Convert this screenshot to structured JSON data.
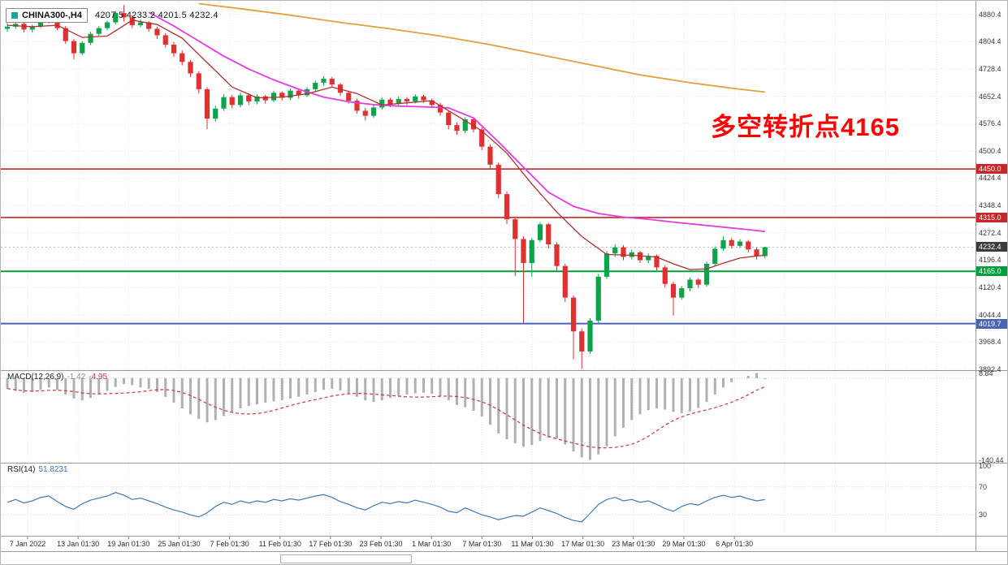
{
  "window": {
    "symbol": "CHINA300-,H4",
    "ohlc": "4207.5 4233.2 4201.5 4232.4"
  },
  "annotation": {
    "text": "多空转折点4165",
    "color": "#fe0000"
  },
  "chart_data": {
    "main": {
      "type": "candlestick",
      "title": "CHINA300-,H4",
      "ohlc_display": {
        "open": 4207.5,
        "high": 4233.2,
        "low": 4201.5,
        "close": 4232.4
      },
      "ylim": [
        3890,
        4918
      ],
      "y_ticks": [
        4880.4,
        4804.4,
        4728.4,
        4652.4,
        4576.4,
        4500.4,
        4424.4,
        4348.4,
        4272.4,
        4196.4,
        4120.4,
        4044.4,
        3968.4,
        3892.4
      ],
      "x_labels": [
        "7 Jan 2022",
        "13 Jan 01:30",
        "19 Jan 01:30",
        "25 Jan 01:30",
        "7 Feb 01:30",
        "11 Feb 01:30",
        "17 Feb 01:30",
        "23 Feb 01:30",
        "1 Mar 01:30",
        "7 Mar 01:30",
        "11 Mar 01:30",
        "17 Mar 01:30",
        "23 Mar 01:30",
        "29 Mar 01:30",
        "6 Apr 01:30"
      ],
      "up_color": "#0ca44a",
      "down_color": "#e03131",
      "candles": [
        [
          4840,
          4856,
          4832,
          4846
        ],
        [
          4846,
          4860,
          4840,
          4854
        ],
        [
          4854,
          4858,
          4830,
          4838
        ],
        [
          4838,
          4852,
          4830,
          4846
        ],
        [
          4846,
          4866,
          4842,
          4861
        ],
        [
          4861,
          4874,
          4855,
          4868
        ],
        [
          4868,
          4870,
          4836,
          4842
        ],
        [
          4842,
          4848,
          4798,
          4806
        ],
        [
          4806,
          4812,
          4755,
          4772
        ],
        [
          4772,
          4806,
          4766,
          4801
        ],
        [
          4801,
          4832,
          4795,
          4826
        ],
        [
          4826,
          4848,
          4820,
          4842
        ],
        [
          4842,
          4863,
          4836,
          4858
        ],
        [
          4858,
          4890,
          4852,
          4884
        ],
        [
          4884,
          4906,
          4860,
          4872
        ],
        [
          4872,
          4878,
          4842,
          4850
        ],
        [
          4850,
          4866,
          4844,
          4858
        ],
        [
          4858,
          4862,
          4832,
          4840
        ],
        [
          4840,
          4846,
          4812,
          4822
        ],
        [
          4822,
          4828,
          4788,
          4796
        ],
        [
          4796,
          4804,
          4762,
          4772
        ],
        [
          4772,
          4780,
          4738,
          4748
        ],
        [
          4748,
          4754,
          4706,
          4716
        ],
        [
          4716,
          4722,
          4660,
          4672
        ],
        [
          4672,
          4678,
          4561,
          4590
        ],
        [
          4590,
          4626,
          4582,
          4618
        ],
        [
          4618,
          4658,
          4612,
          4650
        ],
        [
          4650,
          4656,
          4618,
          4628
        ],
        [
          4628,
          4662,
          4622,
          4655
        ],
        [
          4655,
          4660,
          4628,
          4638
        ],
        [
          4638,
          4658,
          4630,
          4652
        ],
        [
          4652,
          4656,
          4632,
          4641
        ],
        [
          4641,
          4668,
          4636,
          4662
        ],
        [
          4662,
          4666,
          4640,
          4648
        ],
        [
          4648,
          4674,
          4642,
          4668
        ],
        [
          4668,
          4672,
          4646,
          4655
        ],
        [
          4655,
          4678,
          4650,
          4672
        ],
        [
          4672,
          4696,
          4666,
          4690
        ],
        [
          4690,
          4708,
          4682,
          4701
        ],
        [
          4701,
          4706,
          4678,
          4685
        ],
        [
          4685,
          4690,
          4654,
          4662
        ],
        [
          4662,
          4668,
          4632,
          4640
        ],
        [
          4640,
          4646,
          4604,
          4612
        ],
        [
          4612,
          4620,
          4585,
          4598
        ],
        [
          4598,
          4628,
          4592,
          4621
        ],
        [
          4621,
          4650,
          4615,
          4643
        ],
        [
          4643,
          4648,
          4622,
          4631
        ],
        [
          4631,
          4652,
          4625,
          4645
        ],
        [
          4645,
          4650,
          4628,
          4638
        ],
        [
          4638,
          4658,
          4632,
          4652
        ],
        [
          4652,
          4656,
          4634,
          4641
        ],
        [
          4641,
          4646,
          4620,
          4628
        ],
        [
          4628,
          4634,
          4598,
          4607
        ],
        [
          4607,
          4612,
          4560,
          4572
        ],
        [
          4572,
          4580,
          4545,
          4556
        ],
        [
          4556,
          4594,
          4550,
          4588
        ],
        [
          4588,
          4592,
          4552,
          4560
        ],
        [
          4560,
          4566,
          4502,
          4512
        ],
        [
          4512,
          4518,
          4450,
          4462
        ],
        [
          4462,
          4468,
          4368,
          4380
        ],
        [
          4380,
          4388,
          4296,
          4310
        ],
        [
          4310,
          4318,
          4152,
          4255
        ],
        [
          4255,
          4262,
          4022,
          4188
        ],
        [
          4188,
          4258,
          4150,
          4252
        ],
        [
          4252,
          4302,
          4246,
          4296
        ],
        [
          4296,
          4300,
          4228,
          4240
        ],
        [
          4240,
          4246,
          4168,
          4180
        ],
        [
          4180,
          4186,
          4080,
          4092
        ],
        [
          4092,
          4098,
          3920,
          3998
        ],
        [
          3998,
          4006,
          3894,
          3942
        ],
        [
          3942,
          4035,
          3936,
          4028
        ],
        [
          4028,
          4158,
          4022,
          4150
        ],
        [
          4150,
          4222,
          4144,
          4215
        ],
        [
          4215,
          4240,
          4205,
          4232
        ],
        [
          4232,
          4238,
          4196,
          4205
        ],
        [
          4205,
          4226,
          4198,
          4218
        ],
        [
          4218,
          4222,
          4188,
          4196
        ],
        [
          4196,
          4215,
          4188,
          4208
        ],
        [
          4208,
          4212,
          4168,
          4176
        ],
        [
          4176,
          4182,
          4120,
          4130
        ],
        [
          4130,
          4136,
          4042,
          4092
        ],
        [
          4092,
          4124,
          4086,
          4118
        ],
        [
          4118,
          4148,
          4110,
          4142
        ],
        [
          4142,
          4146,
          4118,
          4128
        ],
        [
          4128,
          4192,
          4122,
          4186
        ],
        [
          4186,
          4235,
          4180,
          4228
        ],
        [
          4228,
          4262,
          4222,
          4252
        ],
        [
          4252,
          4258,
          4228,
          4236
        ],
        [
          4236,
          4255,
          4230,
          4248
        ],
        [
          4248,
          4252,
          4218,
          4226
        ],
        [
          4226,
          4232,
          4198,
          4208
        ],
        [
          4207.5,
          4233.2,
          4201.5,
          4232.4
        ]
      ],
      "overlays": {
        "orange_color": "#e0a23c",
        "magenta_color": "#e23ce2",
        "red_color": "#b03030",
        "ma_orange": [
          [
            23,
            4910
          ],
          [
            28,
            4896
          ],
          [
            34,
            4878
          ],
          [
            40,
            4858
          ],
          [
            46,
            4840
          ],
          [
            52,
            4820
          ],
          [
            58,
            4796
          ],
          [
            64,
            4768
          ],
          [
            70,
            4740
          ],
          [
            76,
            4712
          ],
          [
            82,
            4690
          ],
          [
            88,
            4672
          ],
          [
            91,
            4664
          ]
        ],
        "ma_magenta": [
          [
            17,
            4886
          ],
          [
            20,
            4848
          ],
          [
            23,
            4806
          ],
          [
            26,
            4764
          ],
          [
            29,
            4728
          ],
          [
            32,
            4698
          ],
          [
            35,
            4672
          ],
          [
            38,
            4650
          ],
          [
            41,
            4637
          ],
          [
            44,
            4629
          ],
          [
            47,
            4625
          ],
          [
            50,
            4623
          ],
          [
            53,
            4620
          ],
          [
            56,
            4592
          ],
          [
            59,
            4525
          ],
          [
            62,
            4455
          ],
          [
            65,
            4385
          ],
          [
            68,
            4346
          ],
          [
            71,
            4326
          ],
          [
            74,
            4316
          ],
          [
            77,
            4310
          ],
          [
            80,
            4302
          ],
          [
            83,
            4295
          ],
          [
            86,
            4288
          ],
          [
            89,
            4281
          ],
          [
            91,
            4276
          ]
        ],
        "ma_red": [
          [
            0,
            4850
          ],
          [
            3,
            4846
          ],
          [
            6,
            4850
          ],
          [
            9,
            4816
          ],
          [
            12,
            4820
          ],
          [
            15,
            4864
          ],
          [
            18,
            4852
          ],
          [
            21,
            4814
          ],
          [
            24,
            4746
          ],
          [
            27,
            4678
          ],
          [
            30,
            4648
          ],
          [
            33,
            4650
          ],
          [
            36,
            4659
          ],
          [
            39,
            4678
          ],
          [
            42,
            4660
          ],
          [
            45,
            4628
          ],
          [
            48,
            4634
          ],
          [
            51,
            4640
          ],
          [
            54,
            4598
          ],
          [
            57,
            4556
          ],
          [
            60,
            4494
          ],
          [
            63,
            4408
          ],
          [
            66,
            4330
          ],
          [
            69,
            4262
          ],
          [
            72,
            4212
          ],
          [
            75,
            4210
          ],
          [
            78,
            4205
          ],
          [
            80,
            4186
          ],
          [
            82,
            4170
          ],
          [
            84,
            4172
          ],
          [
            86,
            4188
          ],
          [
            88,
            4202
          ],
          [
            90,
            4208
          ],
          [
            91,
            4210
          ]
        ]
      },
      "hlines": [
        {
          "value": 4450.0,
          "label": "4450.0",
          "color": "#c62828",
          "width": 1.6
        },
        {
          "value": 4315.0,
          "label": "4315.0",
          "color": "#c62828",
          "width": 1.6
        },
        {
          "value": 4165.0,
          "label": "4165.0",
          "color": "#009e3c",
          "width": 2
        },
        {
          "value": 4019.7,
          "label": "4019.7",
          "color": "#4a64b4",
          "width": 2
        }
      ],
      "current_price": {
        "value": 4232.4,
        "label": "4232.4",
        "bg": "#3c3c3c"
      }
    },
    "macd": {
      "type": "histogram+line",
      "label": "MACD(12,26,9)",
      "value_main": "-1.42",
      "value_signal": "-4.95",
      "axis_values": [
        8.84,
        -140.44
      ],
      "axis_labels": [
        "8.84",
        "-140.44"
      ],
      "hist_color": "#b0b0b0",
      "signal_color": "#cf3a3a",
      "signal_period": 9,
      "histogram": [
        -18,
        -22,
        -25,
        -24,
        -20,
        -16,
        -20,
        -28,
        -35,
        -38,
        -34,
        -28,
        -22,
        -15,
        -10,
        -12,
        -16,
        -18,
        -24,
        -32,
        -42,
        -52,
        -62,
        -70,
        -76,
        -72,
        -65,
        -58,
        -52,
        -48,
        -45,
        -42,
        -40,
        -38,
        -35,
        -32,
        -28,
        -24,
        -20,
        -18,
        -21,
        -26,
        -32,
        -38,
        -41,
        -38,
        -34,
        -30,
        -28,
        -26,
        -25,
        -27,
        -31,
        -38,
        -46,
        -50,
        -56,
        -66,
        -80,
        -95,
        -105,
        -112,
        -118,
        -115,
        -108,
        -102,
        -104,
        -114,
        -126,
        -136,
        -140.44,
        -131,
        -117,
        -100,
        -85,
        -72,
        -62,
        -55,
        -52,
        -54,
        -58,
        -60,
        -57,
        -51,
        -41,
        -28,
        -16,
        -7,
        0,
        4,
        8.84,
        -1.42
      ]
    },
    "rsi": {
      "type": "line",
      "label": "RSI(14)",
      "value": "51.8231",
      "axis_values": [
        100,
        70,
        30
      ],
      "levels": [
        70,
        30
      ],
      "line_color": "#3f7ab8",
      "values": [
        48,
        52,
        47,
        50,
        55,
        57,
        49,
        42,
        38,
        46,
        51,
        54,
        57,
        62,
        58,
        52,
        54,
        50,
        46,
        41,
        37,
        34,
        30,
        27,
        33,
        42,
        48,
        45,
        50,
        47,
        50,
        48,
        52,
        50,
        53,
        51,
        54,
        57,
        59,
        55,
        49,
        45,
        40,
        37,
        43,
        48,
        46,
        49,
        47,
        51,
        48,
        45,
        41,
        35,
        33,
        40,
        35,
        30,
        27,
        23,
        26,
        29,
        28,
        34,
        40,
        36,
        32,
        26,
        22,
        20,
        32,
        45,
        52,
        55,
        50,
        52,
        48,
        50,
        45,
        39,
        35,
        42,
        46,
        44,
        50,
        55,
        58,
        55,
        57,
        53,
        50,
        51.82
      ]
    }
  }
}
